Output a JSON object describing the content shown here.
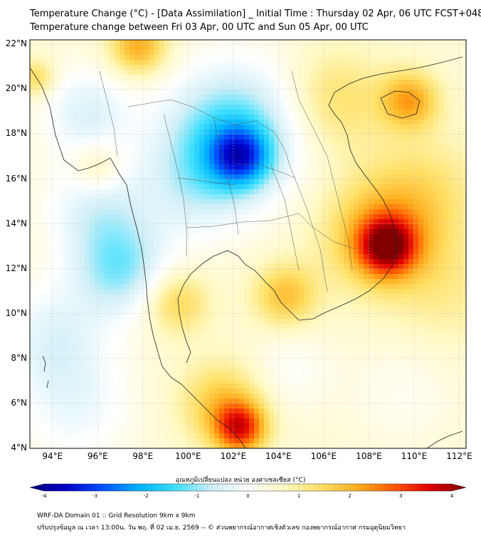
{
  "header": {
    "title_line1": "Temperature Change (°C) - [Data Assimilation] _ Initial Time : Thursday 02 Apr, 06 UTC FCST+048",
    "title_line2": "Temperature change between Fri 03 Apr, 00 UTC and Sun 05 Apr, 00 UTC"
  },
  "map": {
    "lat_labels": [
      "22°N",
      "20°N",
      "18°N",
      "16°N",
      "14°N",
      "12°N",
      "10°N",
      "8°N",
      "6°N",
      "4°N"
    ],
    "lon_labels": [
      "94°E",
      "96°E",
      "98°E",
      "100°E",
      "102°E",
      "104°E",
      "106°E",
      "108°E",
      "110°E",
      "112°E"
    ],
    "lat_values": [
      22,
      20,
      18,
      16,
      14,
      12,
      10,
      8,
      6,
      4
    ],
    "lon_values": [
      94,
      96,
      98,
      100,
      102,
      104,
      106,
      108,
      110,
      112
    ],
    "extent": {
      "lon_min": 93,
      "lon_max": 112.3,
      "lat_min": 4,
      "lat_max": 22.2
    },
    "anomalies": [
      {
        "lon": 102.3,
        "lat": 17.0,
        "value": -2.2,
        "spread": 0.9
      },
      {
        "lon": 101.5,
        "lat": 17.6,
        "value": -1.2,
        "spread": 2.0
      },
      {
        "lon": 102.5,
        "lat": 18.5,
        "value": -0.8,
        "spread": 2.2
      },
      {
        "lon": 100.2,
        "lat": 15.5,
        "value": -0.6,
        "spread": 1.6
      },
      {
        "lon": 97.0,
        "lat": 12.0,
        "value": -1.4,
        "spread": 1.5
      },
      {
        "lon": 96.0,
        "lat": 14.8,
        "value": -0.9,
        "spread": 1.6
      },
      {
        "lon": 95.5,
        "lat": 19.0,
        "value": -0.9,
        "spread": 1.4
      },
      {
        "lon": 94.0,
        "lat": 9.0,
        "value": -0.8,
        "spread": 1.6
      },
      {
        "lon": 95.0,
        "lat": 6.0,
        "value": -0.7,
        "spread": 1.8
      },
      {
        "lon": 104.5,
        "lat": 7.5,
        "value": -0.4,
        "spread": 1.3
      },
      {
        "lon": 109.5,
        "lat": 6.5,
        "value": -0.3,
        "spread": 1.6
      },
      {
        "lon": 108.8,
        "lat": 13.0,
        "value": 2.6,
        "spread": 0.9
      },
      {
        "lon": 108.5,
        "lat": 13.5,
        "value": 1.4,
        "spread": 1.8
      },
      {
        "lon": 102.3,
        "lat": 4.9,
        "value": 2.4,
        "spread": 0.8
      },
      {
        "lon": 101.5,
        "lat": 6.0,
        "value": 1.2,
        "spread": 1.3
      },
      {
        "lon": 109.8,
        "lat": 19.5,
        "value": 1.6,
        "spread": 0.9
      },
      {
        "lon": 97.8,
        "lat": 21.9,
        "value": 1.6,
        "spread": 0.9
      },
      {
        "lon": 104.3,
        "lat": 10.8,
        "value": 1.3,
        "spread": 1.0
      },
      {
        "lon": 99.5,
        "lat": 10.5,
        "value": 1.1,
        "spread": 1.0
      },
      {
        "lon": 106.5,
        "lat": 19.5,
        "value": 0.9,
        "spread": 1.6
      },
      {
        "lon": 110.5,
        "lat": 15.5,
        "value": 0.7,
        "spread": 1.8
      },
      {
        "lon": 111.5,
        "lat": 11.0,
        "value": 0.5,
        "spread": 1.8
      },
      {
        "lon": 93.3,
        "lat": 20.5,
        "value": 1.0,
        "spread": 0.6
      },
      {
        "lon": 96.0,
        "lat": 16.5,
        "value": 0.8,
        "spread": 0.8
      }
    ],
    "background_value": 0.45
  },
  "colorbar": {
    "title": "อุณหภูมิเปลี่ยนแปลง หน่วย องศาเซลเซียส (°C)",
    "ticks": [
      "-4",
      "-3",
      "-2",
      "-1",
      "0",
      "1",
      "2",
      "3",
      "4"
    ],
    "min": -4,
    "max": 4,
    "colors": [
      "#00007a",
      "#0000c8",
      "#0050ff",
      "#00b4ff",
      "#40e0ff",
      "#cfeff7",
      "#ffffff",
      "#fff9c4",
      "#ffe066",
      "#ffb020",
      "#ff5a00",
      "#e00000",
      "#800000"
    ]
  },
  "footer": {
    "line1": "WRF-DA Domain 01 :: Grid Resolution 9km x 9km",
    "line2": "ปรับปรุงข้อมูล ณ เวลา 13:00น. วัน พฤ. ที่ 02 เม.ย. 2569 -- © ส่วนพยากรณ์อากาศเชิงตัวเลข กองพยากรณ์อากาศ กรมอุตุนิยมวิทยา"
  }
}
